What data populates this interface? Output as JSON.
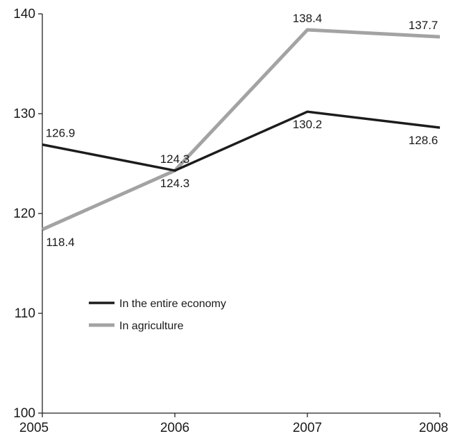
{
  "chart_data": {
    "type": "line",
    "title": "",
    "xlabel": "",
    "ylabel": "",
    "categories": [
      "2005",
      "2006",
      "2007",
      "2008"
    ],
    "ylim": [
      100,
      140
    ],
    "yticks": [
      100,
      110,
      120,
      130,
      140
    ],
    "grid": false,
    "legend_position": "left",
    "series": [
      {
        "name": "In the entire economy",
        "values": [
          126.9,
          124.3,
          130.2,
          128.6
        ],
        "labels": [
          "126.9",
          "124.3",
          "130.2",
          "128.6"
        ],
        "label_placement": [
          "above",
          "above",
          "below",
          "below"
        ],
        "color": "#1c1c1c"
      },
      {
        "name": "In agriculture",
        "values": [
          118.4,
          124.3,
          138.4,
          137.7
        ],
        "labels": [
          "118.4",
          "124.3",
          "138.4",
          "137.7"
        ],
        "label_placement": [
          "below",
          "below",
          "above",
          "above"
        ],
        "color": "#a3a3a3"
      }
    ]
  }
}
